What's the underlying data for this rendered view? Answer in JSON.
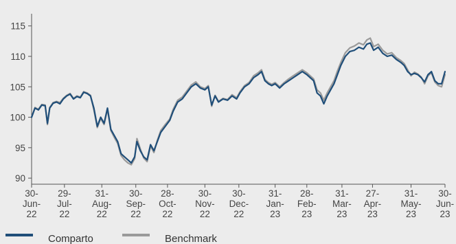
{
  "chart_data": {
    "type": "line",
    "title": "",
    "xlabel": "",
    "ylabel": "",
    "ylim": [
      89,
      117
    ],
    "yticks": [
      90,
      95,
      100,
      105,
      110,
      115
    ],
    "grid": false,
    "legend_position": "bottom-left",
    "x_ticks": [
      {
        "d": "2022-06-30",
        "lines": [
          "30-",
          "Jun-",
          "22"
        ]
      },
      {
        "d": "2022-07-29",
        "lines": [
          "29-",
          "Jul-",
          "22"
        ]
      },
      {
        "d": "2022-08-31",
        "lines": [
          "31-",
          "Aug-",
          "22"
        ]
      },
      {
        "d": "2022-09-30",
        "lines": [
          "30-",
          "Sep-",
          "22"
        ]
      },
      {
        "d": "2022-10-28",
        "lines": [
          "28-",
          "Oct-",
          "22"
        ]
      },
      {
        "d": "2022-11-30",
        "lines": [
          "30-",
          "Nov-",
          "22"
        ]
      },
      {
        "d": "2022-12-30",
        "lines": [
          "30-",
          "Dec-",
          "22"
        ]
      },
      {
        "d": "2023-01-31",
        "lines": [
          "31-",
          "Jan-",
          "23"
        ]
      },
      {
        "d": "2023-02-28",
        "lines": [
          "28-",
          "Feb-",
          "23"
        ]
      },
      {
        "d": "2023-03-31",
        "lines": [
          "31-",
          "Mar-",
          "23"
        ]
      },
      {
        "d": "2023-04-27",
        "lines": [
          "27-",
          "Apr-",
          "23"
        ]
      },
      {
        "d": "2023-05-31",
        "lines": [
          "31-",
          "May-",
          "23"
        ]
      },
      {
        "d": "2023-06-30",
        "lines": [
          "30-",
          "Jun-",
          "23"
        ]
      }
    ],
    "series": [
      {
        "name": "Comparto",
        "color": "#1f4e79",
        "points": [
          [
            "2022-06-30",
            100.0
          ],
          [
            "2022-07-03",
            101.5
          ],
          [
            "2022-07-06",
            101.2
          ],
          [
            "2022-07-09",
            102.0
          ],
          [
            "2022-07-12",
            101.9
          ],
          [
            "2022-07-14",
            99.0
          ],
          [
            "2022-07-16",
            101.5
          ],
          [
            "2022-07-19",
            102.3
          ],
          [
            "2022-07-22",
            102.5
          ],
          [
            "2022-07-25",
            102.2
          ],
          [
            "2022-07-28",
            103.0
          ],
          [
            "2022-07-31",
            103.5
          ],
          [
            "2022-08-03",
            103.8
          ],
          [
            "2022-08-06",
            103.0
          ],
          [
            "2022-08-09",
            103.4
          ],
          [
            "2022-08-12",
            103.2
          ],
          [
            "2022-08-15",
            104.1
          ],
          [
            "2022-08-18",
            103.9
          ],
          [
            "2022-08-21",
            103.5
          ],
          [
            "2022-08-24",
            101.5
          ],
          [
            "2022-08-27",
            98.5
          ],
          [
            "2022-08-30",
            100.0
          ],
          [
            "2022-09-02",
            99.0
          ],
          [
            "2022-09-05",
            101.5
          ],
          [
            "2022-09-08",
            98.0
          ],
          [
            "2022-09-11",
            97.0
          ],
          [
            "2022-09-14",
            96.0
          ],
          [
            "2022-09-17",
            94.0
          ],
          [
            "2022-09-20",
            93.5
          ],
          [
            "2022-09-23",
            93.0
          ],
          [
            "2022-09-26",
            92.5
          ],
          [
            "2022-09-29",
            93.5
          ],
          [
            "2022-10-01",
            96.0
          ],
          [
            "2022-10-04",
            94.5
          ],
          [
            "2022-10-07",
            93.5
          ],
          [
            "2022-10-10",
            93.0
          ],
          [
            "2022-10-13",
            95.5
          ],
          [
            "2022-10-16",
            94.5
          ],
          [
            "2022-10-19",
            96.0
          ],
          [
            "2022-10-22",
            97.5
          ],
          [
            "2022-10-26",
            98.5
          ],
          [
            "2022-10-30",
            99.5
          ],
          [
            "2022-11-02",
            101.0
          ],
          [
            "2022-11-06",
            102.5
          ],
          [
            "2022-11-10",
            103.0
          ],
          [
            "2022-11-14",
            104.0
          ],
          [
            "2022-11-18",
            105.0
          ],
          [
            "2022-11-22",
            105.5
          ],
          [
            "2022-11-26",
            104.8
          ],
          [
            "2022-11-30",
            104.5
          ],
          [
            "2022-12-03",
            105.0
          ],
          [
            "2022-12-06",
            102.0
          ],
          [
            "2022-12-09",
            103.5
          ],
          [
            "2022-12-12",
            102.5
          ],
          [
            "2022-12-16",
            103.0
          ],
          [
            "2022-12-20",
            102.8
          ],
          [
            "2022-12-24",
            103.5
          ],
          [
            "2022-12-28",
            103.0
          ],
          [
            "2022-12-31",
            104.0
          ],
          [
            "2023-01-04",
            105.0
          ],
          [
            "2023-01-08",
            105.5
          ],
          [
            "2023-01-12",
            106.5
          ],
          [
            "2023-01-16",
            107.0
          ],
          [
            "2023-01-19",
            107.5
          ],
          [
            "2023-01-22",
            106.0
          ],
          [
            "2023-01-25",
            105.5
          ],
          [
            "2023-01-28",
            105.2
          ],
          [
            "2023-01-31",
            105.5
          ],
          [
            "2023-02-04",
            104.8
          ],
          [
            "2023-02-08",
            105.5
          ],
          [
            "2023-02-12",
            106.0
          ],
          [
            "2023-02-16",
            106.5
          ],
          [
            "2023-02-20",
            107.0
          ],
          [
            "2023-02-24",
            107.5
          ],
          [
            "2023-02-28",
            107.0
          ],
          [
            "2023-03-03",
            106.5
          ],
          [
            "2023-03-06",
            106.0
          ],
          [
            "2023-03-09",
            104.0
          ],
          [
            "2023-03-12",
            103.5
          ],
          [
            "2023-03-15",
            102.2
          ],
          [
            "2023-03-18",
            103.5
          ],
          [
            "2023-03-21",
            104.5
          ],
          [
            "2023-03-24",
            105.5
          ],
          [
            "2023-03-27",
            107.0
          ],
          [
            "2023-03-30",
            108.5
          ],
          [
            "2023-04-03",
            110.0
          ],
          [
            "2023-04-07",
            110.8
          ],
          [
            "2023-04-11",
            111.0
          ],
          [
            "2023-04-15",
            111.5
          ],
          [
            "2023-04-19",
            111.2
          ],
          [
            "2023-04-22",
            112.0
          ],
          [
            "2023-04-25",
            112.2
          ],
          [
            "2023-04-28",
            111.0
          ],
          [
            "2023-05-02",
            111.5
          ],
          [
            "2023-05-06",
            110.5
          ],
          [
            "2023-05-10",
            110.0
          ],
          [
            "2023-05-14",
            110.2
          ],
          [
            "2023-05-18",
            109.5
          ],
          [
            "2023-05-22",
            109.0
          ],
          [
            "2023-05-25",
            108.5
          ],
          [
            "2023-05-28",
            107.5
          ],
          [
            "2023-05-31",
            107.0
          ],
          [
            "2023-06-03",
            107.2
          ],
          [
            "2023-06-06",
            107.0
          ],
          [
            "2023-06-09",
            106.5
          ],
          [
            "2023-06-12",
            105.8
          ],
          [
            "2023-06-15",
            107.0
          ],
          [
            "2023-06-18",
            107.5
          ],
          [
            "2023-06-21",
            106.0
          ],
          [
            "2023-06-24",
            105.5
          ],
          [
            "2023-06-27",
            105.5
          ],
          [
            "2023-06-30",
            107.5
          ]
        ]
      },
      {
        "name": "Benchmark",
        "color": "#9a9a9a",
        "points": [
          [
            "2022-06-30",
            100.0
          ],
          [
            "2022-07-03",
            101.6
          ],
          [
            "2022-07-06",
            101.3
          ],
          [
            "2022-07-09",
            102.1
          ],
          [
            "2022-07-12",
            102.0
          ],
          [
            "2022-07-14",
            98.8
          ],
          [
            "2022-07-16",
            101.6
          ],
          [
            "2022-07-19",
            102.4
          ],
          [
            "2022-07-22",
            102.6
          ],
          [
            "2022-07-25",
            102.4
          ],
          [
            "2022-07-28",
            103.1
          ],
          [
            "2022-07-31",
            103.6
          ],
          [
            "2022-08-03",
            103.9
          ],
          [
            "2022-08-06",
            103.1
          ],
          [
            "2022-08-09",
            103.5
          ],
          [
            "2022-08-12",
            103.3
          ],
          [
            "2022-08-15",
            104.2
          ],
          [
            "2022-08-18",
            104.0
          ],
          [
            "2022-08-21",
            103.6
          ],
          [
            "2022-08-24",
            101.2
          ],
          [
            "2022-08-27",
            98.3
          ],
          [
            "2022-08-30",
            99.8
          ],
          [
            "2022-09-02",
            98.8
          ],
          [
            "2022-09-05",
            101.3
          ],
          [
            "2022-09-08",
            97.8
          ],
          [
            "2022-09-11",
            96.7
          ],
          [
            "2022-09-14",
            95.7
          ],
          [
            "2022-09-17",
            93.7
          ],
          [
            "2022-09-20",
            93.0
          ],
          [
            "2022-09-23",
            92.5
          ],
          [
            "2022-09-26",
            92.2
          ],
          [
            "2022-09-29",
            93.2
          ],
          [
            "2022-10-01",
            96.5
          ],
          [
            "2022-10-04",
            94.8
          ],
          [
            "2022-10-07",
            93.3
          ],
          [
            "2022-10-10",
            92.7
          ],
          [
            "2022-10-13",
            95.3
          ],
          [
            "2022-10-16",
            94.2
          ],
          [
            "2022-10-19",
            96.2
          ],
          [
            "2022-10-22",
            97.8
          ],
          [
            "2022-10-26",
            98.8
          ],
          [
            "2022-10-30",
            99.7
          ],
          [
            "2022-11-02",
            101.3
          ],
          [
            "2022-11-06",
            102.8
          ],
          [
            "2022-11-10",
            103.3
          ],
          [
            "2022-11-14",
            104.3
          ],
          [
            "2022-11-18",
            105.3
          ],
          [
            "2022-11-22",
            105.8
          ],
          [
            "2022-11-26",
            105.0
          ],
          [
            "2022-11-30",
            104.7
          ],
          [
            "2022-12-03",
            105.2
          ],
          [
            "2022-12-06",
            101.8
          ],
          [
            "2022-12-09",
            103.6
          ],
          [
            "2022-12-12",
            102.6
          ],
          [
            "2022-12-16",
            103.1
          ],
          [
            "2022-12-20",
            102.9
          ],
          [
            "2022-12-24",
            103.7
          ],
          [
            "2022-12-28",
            103.2
          ],
          [
            "2022-12-31",
            104.2
          ],
          [
            "2023-01-04",
            105.2
          ],
          [
            "2023-01-08",
            105.7
          ],
          [
            "2023-01-12",
            106.8
          ],
          [
            "2023-01-16",
            107.3
          ],
          [
            "2023-01-19",
            107.8
          ],
          [
            "2023-01-22",
            106.2
          ],
          [
            "2023-01-25",
            105.7
          ],
          [
            "2023-01-28",
            105.4
          ],
          [
            "2023-01-31",
            105.7
          ],
          [
            "2023-02-04",
            105.0
          ],
          [
            "2023-02-08",
            105.7
          ],
          [
            "2023-02-12",
            106.3
          ],
          [
            "2023-02-16",
            106.8
          ],
          [
            "2023-02-20",
            107.3
          ],
          [
            "2023-02-24",
            107.8
          ],
          [
            "2023-02-28",
            107.3
          ],
          [
            "2023-03-03",
            106.8
          ],
          [
            "2023-03-06",
            106.3
          ],
          [
            "2023-03-09",
            104.5
          ],
          [
            "2023-03-12",
            104.0
          ],
          [
            "2023-03-15",
            102.8
          ],
          [
            "2023-03-18",
            104.0
          ],
          [
            "2023-03-21",
            105.0
          ],
          [
            "2023-03-24",
            106.0
          ],
          [
            "2023-03-27",
            107.6
          ],
          [
            "2023-03-30",
            109.0
          ],
          [
            "2023-04-03",
            110.6
          ],
          [
            "2023-04-07",
            111.4
          ],
          [
            "2023-04-11",
            111.7
          ],
          [
            "2023-04-15",
            112.2
          ],
          [
            "2023-04-19",
            111.9
          ],
          [
            "2023-04-22",
            112.7
          ],
          [
            "2023-04-25",
            113.0
          ],
          [
            "2023-04-28",
            111.6
          ],
          [
            "2023-05-02",
            112.0
          ],
          [
            "2023-05-06",
            111.0
          ],
          [
            "2023-05-10",
            110.4
          ],
          [
            "2023-05-14",
            110.6
          ],
          [
            "2023-05-18",
            109.8
          ],
          [
            "2023-05-22",
            109.3
          ],
          [
            "2023-05-25",
            108.8
          ],
          [
            "2023-05-28",
            107.8
          ],
          [
            "2023-05-31",
            106.8
          ],
          [
            "2023-06-03",
            107.4
          ],
          [
            "2023-06-06",
            107.1
          ],
          [
            "2023-06-09",
            106.6
          ],
          [
            "2023-06-12",
            105.5
          ],
          [
            "2023-06-15",
            106.8
          ],
          [
            "2023-06-18",
            107.3
          ],
          [
            "2023-06-21",
            105.8
          ],
          [
            "2023-06-24",
            105.2
          ],
          [
            "2023-06-27",
            105.0
          ],
          [
            "2023-06-30",
            107.0
          ]
        ]
      }
    ]
  }
}
